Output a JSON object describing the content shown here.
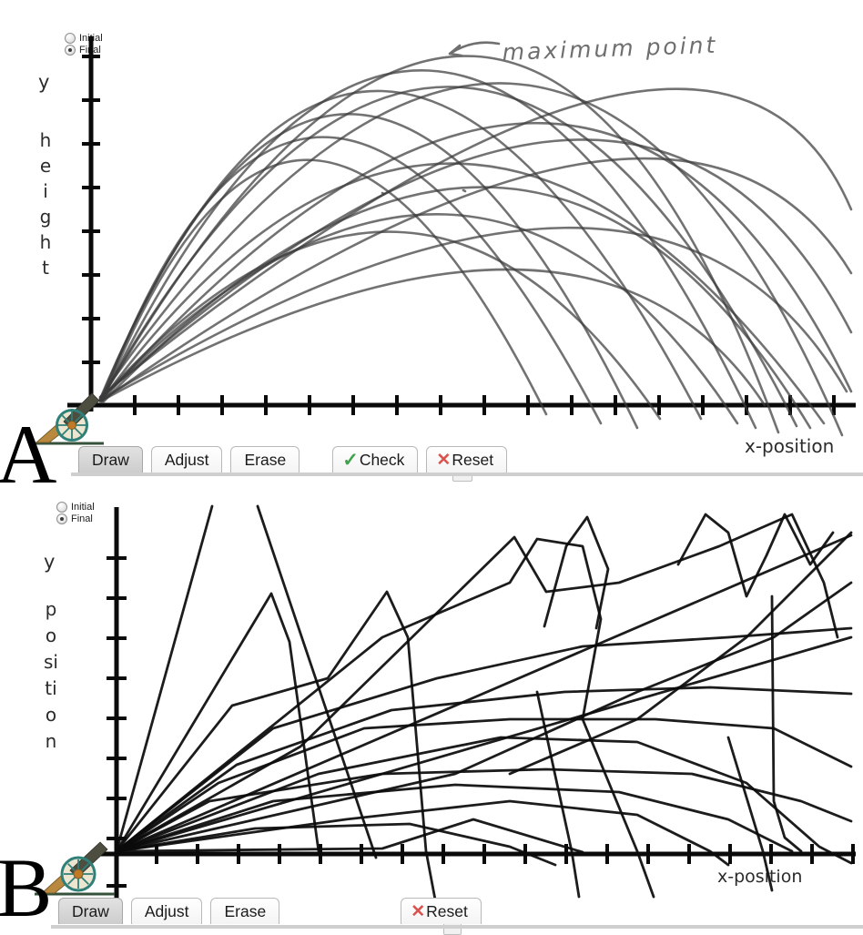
{
  "colors": {
    "axis": "#0a0a0a",
    "stroke_panel_a": "#3c3c3c",
    "stroke_panel_b": "#0b0b0b",
    "check_green": "#3fa34d",
    "reset_red": "#d9534f",
    "annotation_gray": "#6f6f6f",
    "active_tab_gray": "#d6d6d6"
  },
  "icons": {
    "check_icon": "✓",
    "reset_icon": "✕",
    "radio_icon": "circle",
    "cannon_icon": "cannon"
  },
  "panel_a": {
    "figure_label": "A",
    "radios": {
      "initial": "Initial",
      "final": "Final",
      "selected": "Final"
    },
    "y_label_word1": "y",
    "y_label_word2": "height",
    "x_label": "x-position",
    "annotation": "maximum point",
    "toolbar": {
      "draw": "Draw",
      "adjust": "Adjust",
      "erase": "Erase",
      "check": "Check",
      "reset": "Reset",
      "active_tab": "Draw"
    },
    "strokes": [
      "M112 440 Q335 -151 660 465",
      "M110 438 Q400 -249 770 460",
      "M114 436 Q470 -298 830 470",
      "M110 440 Q508 -263 875 468",
      "M112 438 Q558 -333 855 475",
      "M110 437 Q603 -274 925 478",
      "M113 439 Q648 -164 935 430",
      "M110 438 Q698 -92 935 365",
      "M112 440 Q748 -9 935 300",
      "M110 436 Q788 -114 935 230",
      "M114 441 Q580 -44 890 470",
      "M110 439 Q520 19 810 465",
      "M112 437 Q453 61 725 460",
      "M110 441 Q645 149 840 445",
      "M113 438 Q503 -92 905 465",
      "M110 440 Q375 -204 700 470",
      "M112 442 Q325 -97 600 455",
      "M111 439 Q720 66 930 430",
      "M420 212 l2 1",
      "M509 209 l2 1"
    ]
  },
  "panel_b": {
    "figure_label": "B",
    "radios": {
      "initial": "Initial",
      "final": "Final",
      "selected": "Final"
    },
    "y_label_word1": "y",
    "y_label_word2": "position",
    "x_label": "x-position",
    "toolbar": {
      "draw": "Draw",
      "adjust": "Adjust",
      "erase": "Erase",
      "reset": "Reset",
      "active_tab": "Draw"
    },
    "strokes": [
      "M128 390 L233 11",
      "M283 11 L413 397",
      "M128 390 L298 107 L318 160 L350 390",
      "M128 390 L255 230 L360 200 L425 105 L448 155 L468 390 L478 443",
      "M128 390 L330 275 L565 45 L600 105 L680 95 L790 55 L870 20 L905 95 L920 155",
      "M128 390 L420 155 L560 95 L590 47 L640 55 L660 135 L640 245 L700 390 L718 440",
      "M128 390 L300 255 L480 200 L640 165 L800 155 L935 145",
      "M128 390 L260 295 L430 235 L620 215 L780 210 L935 217",
      "M128 390 L240 315 L400 255 L560 245 L720 245 L850 255 L935 297",
      "M128 390 L350 305 L550 265 L700 270 L820 315 L900 385 L935 403",
      "M128 390 L230 335 L420 305 L600 300 L760 305 L880 335 L935 357",
      "M128 390 L300 335 L500 317 L680 325 L800 355 L870 390",
      "M128 390 L380 355 L560 335 L700 350 L780 390 L800 405",
      "M128 390 L280 365 L450 360 L560 385 L610 405",
      "M128 390 L420 387 L520 355 L640 391",
      "M128 390 L935 43",
      "M598 143 L622 55 L645 23 L668 80 L655 145",
      "M745 75 L775 20 L800 40 L820 110 L842 65 L862 20 L890 75 L915 40",
      "M848 110 L850 335 L862 375 L880 390",
      "M935 40 L820 155 L700 245 L560 305",
      "M590 215 L628 390 L636 440",
      "M800 265 L838 390 L848 433",
      "M128 390 L500 305 L700 215 L850 155 L935 95",
      "M128 390 L935 155"
    ]
  }
}
